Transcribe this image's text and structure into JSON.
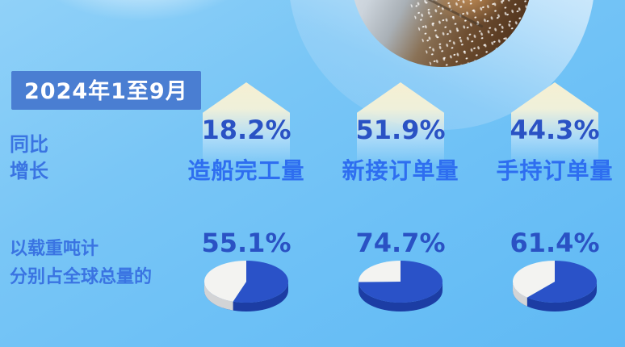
{
  "period_badge": "2024年1至9月",
  "rows": {
    "growth": {
      "line1": "同比",
      "line2": "增长"
    },
    "share": {
      "line1": "以载重吨计",
      "line2": "分别占全球总量的"
    }
  },
  "columns": [
    {
      "label": "造船完工量",
      "growth": "18.2%",
      "share": "55.1%"
    },
    {
      "label": "新接订单量",
      "growth": "51.9%",
      "share": "74.7%"
    },
    {
      "label": "手持订单量",
      "growth": "44.3%",
      "share": "61.4%"
    }
  ],
  "chart_data": {
    "type": "pie",
    "title": "2024年1至9月",
    "categories": [
      "造船完工量",
      "新接订单量",
      "手持订单量"
    ],
    "series": [
      {
        "name": "同比增长",
        "unit": "%",
        "values": [
          18.2,
          51.9,
          44.3
        ]
      },
      {
        "name": "以载重吨计分别占全球总量的",
        "unit": "%",
        "values": [
          55.1,
          74.7,
          61.4
        ]
      }
    ],
    "pies": [
      {
        "category": "造船完工量",
        "slices": [
          {
            "label": "占全球总量",
            "value": 55.1
          },
          {
            "label": "其余",
            "value": 44.9
          }
        ]
      },
      {
        "category": "新接订单量",
        "slices": [
          {
            "label": "占全球总量",
            "value": 74.7
          },
          {
            "label": "其余",
            "value": 25.3
          }
        ]
      },
      {
        "category": "手持订单量",
        "slices": [
          {
            "label": "占全球总量",
            "value": 61.4
          },
          {
            "label": "其余",
            "value": 38.6
          }
        ]
      }
    ],
    "legend_position": "none",
    "grid": false
  },
  "colors": {
    "badge_bg": "#4a7ed2",
    "badge_text": "#ffffff",
    "row_label_blue": "#3a74e2",
    "category_blue": "#2e6ef0",
    "value_navy": "#2a52c4",
    "pie_blue": "#2a52c8",
    "pie_blue_side": "#1c3da4",
    "pie_white": "#f3f3f1",
    "pie_white_side": "#d3d4d6",
    "pentagon_cream": "#f6efd2",
    "background_sky": "#6fc2f6"
  }
}
